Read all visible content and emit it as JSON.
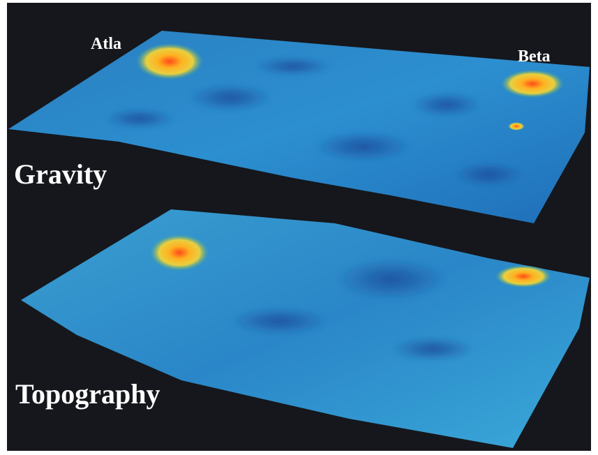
{
  "labels": {
    "atla": "Atla",
    "beta": "Beta",
    "gravity": "Gravity",
    "topography": "Topography"
  }
}
